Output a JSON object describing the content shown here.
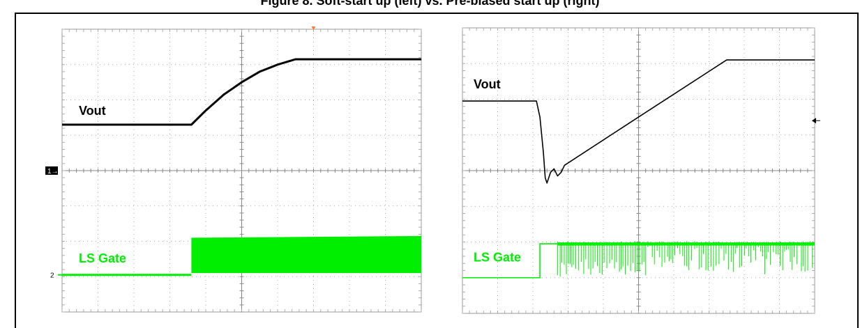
{
  "figure": {
    "title": "Figure 8. Soft-start up (left) vs. Pre-biased start up (right)"
  },
  "chart_data": [
    {
      "type": "line",
      "title": "",
      "subtitle": "Soft-start up",
      "grid": true,
      "grid_divisions": {
        "x": 10,
        "y": 8
      },
      "xlim": [
        0,
        10
      ],
      "ylim": [
        0,
        8
      ],
      "xlabel": "",
      "ylabel": "",
      "markers": {
        "channel_1": "1",
        "channel_2": "2",
        "trigger": "orange-triangle"
      },
      "series": [
        {
          "name": "Vout",
          "color": "#000000",
          "points": [
            [
              0,
              5.3
            ],
            [
              3.6,
              5.3
            ],
            [
              4.0,
              5.7
            ],
            [
              4.5,
              6.15
            ],
            [
              5.0,
              6.5
            ],
            [
              5.5,
              6.8
            ],
            [
              6.0,
              7.0
            ],
            [
              6.5,
              7.15
            ],
            [
              10,
              7.15
            ]
          ]
        },
        {
          "name": "LS Gate",
          "color": "#00ee00",
          "low": 1.05,
          "switch_on_x": 3.6,
          "envelope_high": [
            [
              3.6,
              2.1
            ],
            [
              10,
              2.15
            ]
          ],
          "envelope_low": [
            [
              3.6,
              1.1
            ],
            [
              10,
              1.1
            ]
          ]
        }
      ]
    },
    {
      "type": "line",
      "title": "",
      "subtitle": "Pre-biased start up",
      "grid": true,
      "grid_divisions": {
        "x": 10,
        "y": 8
      },
      "xlim": [
        0,
        10
      ],
      "ylim": [
        0,
        8
      ],
      "xlabel": "",
      "ylabel": "",
      "markers": {
        "channel_level_arrow": "left-arrow"
      },
      "series": [
        {
          "name": "Vout",
          "color": "#000000",
          "points": [
            [
              0,
              5.95
            ],
            [
              2.1,
              5.95
            ],
            [
              2.2,
              5.5
            ],
            [
              2.3,
              4.5
            ],
            [
              2.35,
              3.8
            ],
            [
              2.4,
              3.65
            ],
            [
              2.5,
              3.95
            ],
            [
              2.6,
              4.05
            ],
            [
              2.7,
              3.85
            ],
            [
              2.8,
              3.95
            ],
            [
              2.9,
              4.15
            ],
            [
              5.0,
              5.5
            ],
            [
              7.5,
              7.1
            ],
            [
              10,
              7.1
            ]
          ]
        },
        {
          "name": "LS Gate",
          "color": "#00ee00",
          "low": 1.0,
          "step_x": 2.2,
          "step_high": 1.95,
          "switching_start_x": 2.7,
          "switching_high": 1.95
        }
      ]
    }
  ]
}
